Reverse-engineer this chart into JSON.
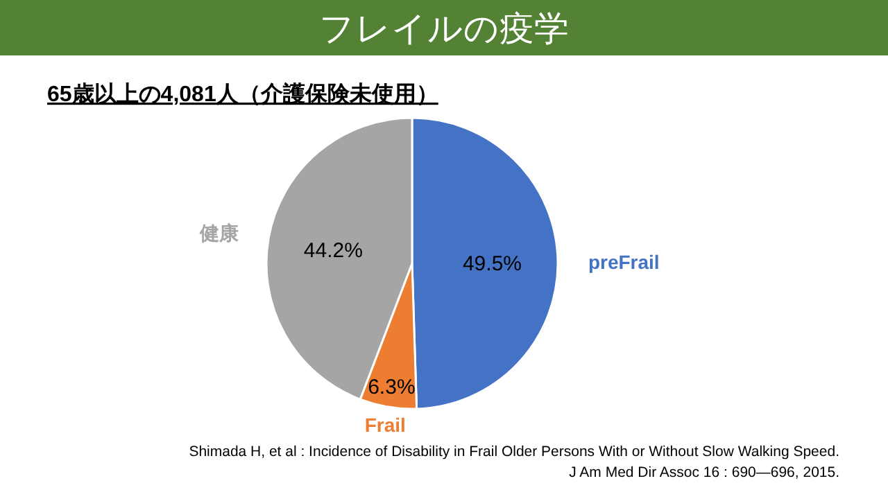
{
  "chart_data": {
    "type": "pie",
    "title": "フレイルの疫学",
    "subtitle": "65歳以上の4,081人（介護保険未使用）",
    "categories": [
      "preFrail",
      "Frail",
      "健康"
    ],
    "values": [
      49.5,
      6.3,
      44.2
    ],
    "colors": [
      "#4472c4",
      "#ed7d31",
      "#a5a5a5"
    ],
    "value_labels": [
      "49.5%",
      "6.3%",
      "44.2%"
    ],
    "annotations": [
      "Shimada H, et al : Incidence of Disability in Frail Older Persons With or Without Slow Walking Speed.",
      "J Am Med Dir Assoc 16 : 690—696, 2015."
    ]
  }
}
